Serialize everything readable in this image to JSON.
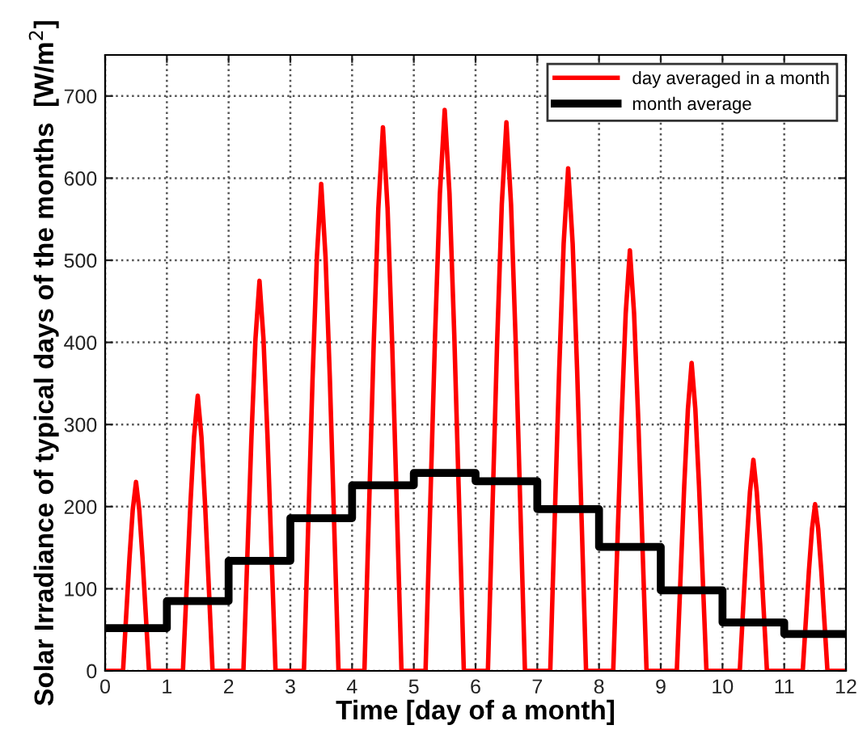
{
  "chart_data": {
    "type": "line",
    "xlabel": "Time [day of a month]",
    "ylabel": "Solar Irradiance of typical days of the months  [W/m$^{2}$]",
    "xlim": [
      0,
      12
    ],
    "ylim": [
      0,
      750
    ],
    "xticks": [
      0,
      1,
      2,
      3,
      4,
      5,
      6,
      7,
      8,
      9,
      10,
      11,
      12
    ],
    "yticks": [
      0,
      100,
      200,
      300,
      400,
      500,
      600,
      700
    ],
    "grid": true,
    "legend": "top right",
    "line_style": "solid",
    "marker": "none",
    "series": [
      {
        "name": "day averaged in a month",
        "color": "#ff0000",
        "x": [
          0,
          0.29,
          0.342,
          0.395,
          0.447,
          0.5,
          0.553,
          0.605,
          0.658,
          0.71,
          1.26,
          1.32,
          1.38,
          1.44,
          1.5,
          1.56,
          1.62,
          1.68,
          1.74,
          2.24,
          2.305,
          2.37,
          2.435,
          2.5,
          2.565,
          2.63,
          2.695,
          2.76,
          3.22,
          3.29,
          3.36,
          3.43,
          3.5,
          3.57,
          3.64,
          3.71,
          3.78,
          4.2,
          4.275,
          4.35,
          4.425,
          4.5,
          4.575,
          4.65,
          4.725,
          4.8,
          5.19,
          5.267,
          5.345,
          5.422,
          5.5,
          5.578,
          5.655,
          5.733,
          5.81,
          6.2,
          6.275,
          6.35,
          6.425,
          6.5,
          6.575,
          6.65,
          6.725,
          6.8,
          7.21,
          7.282,
          7.355,
          7.427,
          7.5,
          7.573,
          7.645,
          7.718,
          7.79,
          8.23,
          8.297,
          8.365,
          8.432,
          8.5,
          8.568,
          8.635,
          8.703,
          8.77,
          9.26,
          9.32,
          9.38,
          9.44,
          9.5,
          9.56,
          9.62,
          9.68,
          9.74,
          10.28,
          10.335,
          10.39,
          10.445,
          10.5,
          10.555,
          10.61,
          10.665,
          10.72,
          11.3,
          11.35,
          11.4,
          11.45,
          11.5,
          11.55,
          11.6,
          11.65,
          11.7,
          12
        ],
        "values": [
          0,
          0,
          69,
          138,
          196,
          230,
          196,
          138,
          69,
          0,
          0,
          101,
          201,
          285,
          335,
          285,
          201,
          101,
          0,
          0,
          143,
          285,
          404,
          475,
          404,
          285,
          143,
          0,
          0,
          178,
          356,
          504,
          593,
          504,
          356,
          178,
          0,
          0,
          199,
          397,
          563,
          662,
          563,
          397,
          199,
          0,
          0,
          205,
          410,
          581,
          683,
          581,
          410,
          205,
          0,
          0,
          200,
          401,
          568,
          668,
          568,
          401,
          200,
          0,
          0,
          184,
          367,
          520,
          612,
          520,
          367,
          184,
          0,
          0,
          154,
          307,
          435,
          512,
          435,
          307,
          154,
          0,
          0,
          113,
          225,
          319,
          375,
          319,
          225,
          113,
          0,
          0,
          77,
          154,
          218,
          257,
          218,
          154,
          77,
          0,
          0,
          61,
          122,
          173,
          203,
          173,
          122,
          61,
          0,
          0
        ]
      },
      {
        "name": "month average",
        "color": "#000000",
        "type": "step",
        "x": [
          0,
          1,
          2,
          3,
          4,
          5,
          6,
          7,
          8,
          9,
          10,
          11,
          12
        ],
        "values": [
          52,
          85,
          134,
          186,
          226,
          241,
          231,
          197,
          151,
          98,
          59,
          45,
          45
        ]
      }
    ]
  }
}
